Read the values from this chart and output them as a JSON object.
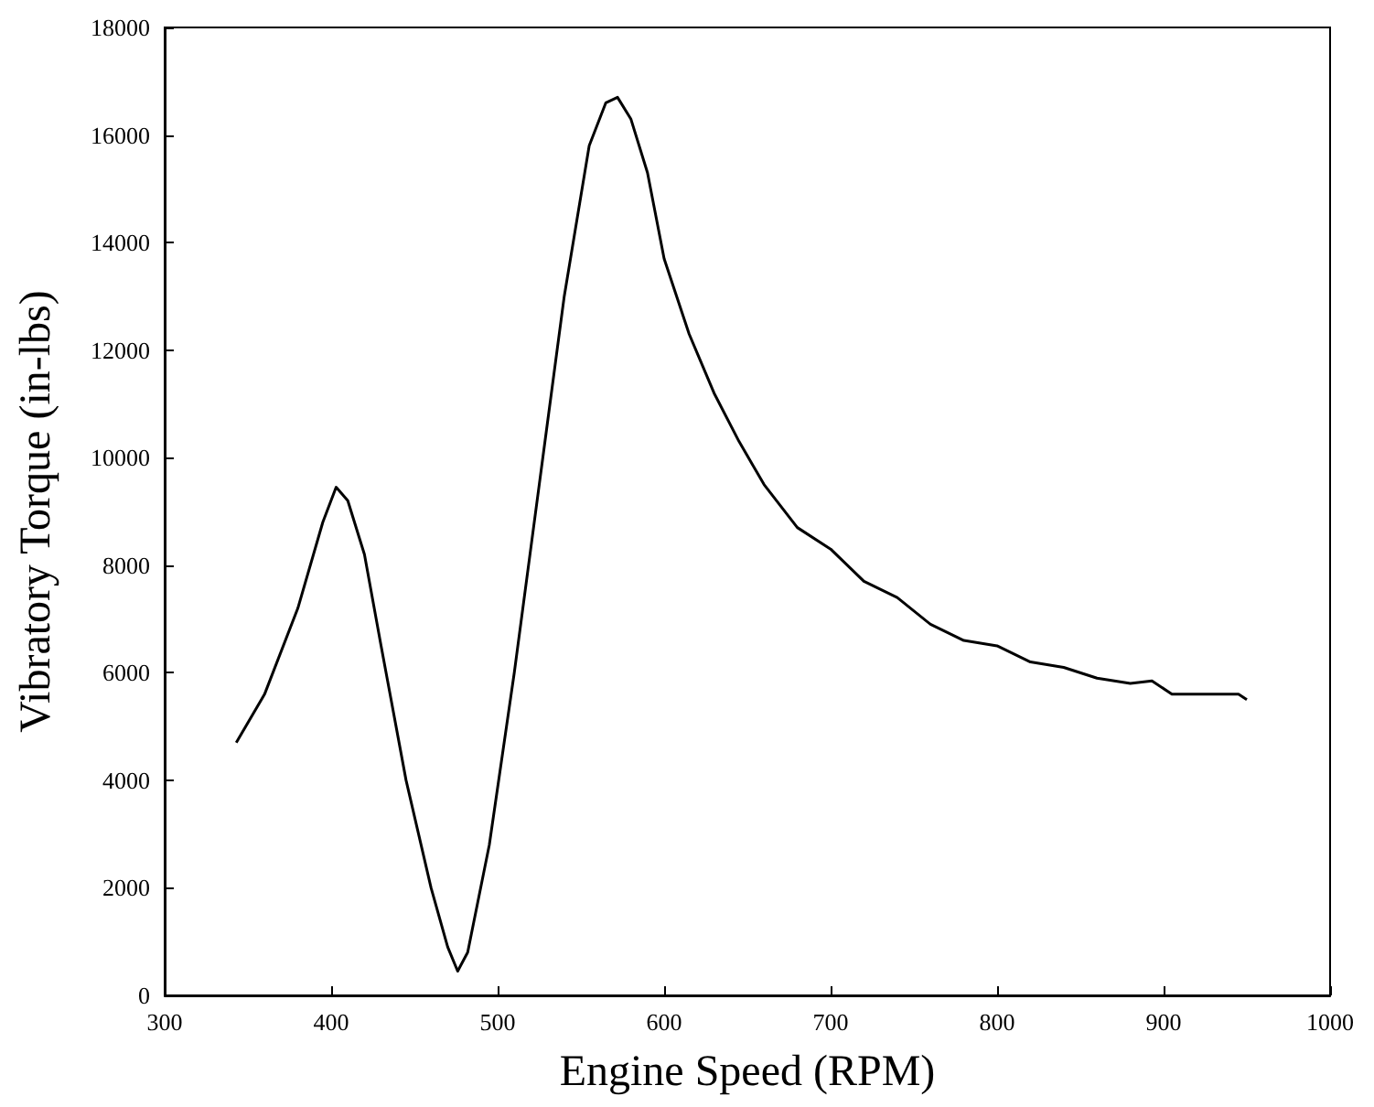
{
  "chart_data": {
    "type": "line",
    "xlabel": "Engine Speed (RPM)",
    "ylabel": "Vibratory Torque (in-lbs)",
    "x": [
      343,
      360,
      380,
      395,
      403,
      410,
      420,
      430,
      445,
      460,
      470,
      476,
      482,
      495,
      510,
      525,
      540,
      555,
      565,
      572,
      580,
      590,
      600,
      615,
      630,
      645,
      660,
      680,
      700,
      720,
      740,
      760,
      780,
      800,
      820,
      840,
      860,
      880,
      893,
      905,
      930,
      945,
      950
    ],
    "series": [
      {
        "color": "#000000",
        "values": [
          4700,
          5600,
          7200,
          8800,
          9450,
          9200,
          8200,
          6500,
          4000,
          2000,
          900,
          450,
          800,
          2800,
          6000,
          9500,
          13000,
          15800,
          16600,
          16700,
          16300,
          15300,
          13700,
          12300,
          11200,
          10300,
          9500,
          8700,
          8300,
          7700,
          7400,
          6900,
          6600,
          6500,
          6200,
          6100,
          5900,
          5800,
          5850,
          5600,
          5600,
          5600,
          5500
        ]
      }
    ],
    "xlim": [
      300,
      1000
    ],
    "xticks": [
      300,
      400,
      500,
      600,
      700,
      800,
      900,
      1000
    ],
    "ylim": [
      0,
      18000
    ],
    "yticks": [
      0,
      2000,
      4000,
      6000,
      8000,
      10000,
      12000,
      14000,
      16000,
      18000
    ],
    "grid": false,
    "marker": "none",
    "line_style": "solid"
  }
}
